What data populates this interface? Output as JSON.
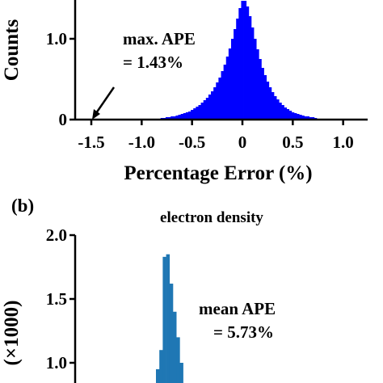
{
  "chart_data": [
    {
      "type": "bar",
      "panel_label": "",
      "title": "",
      "xlabel": "Percentage Error (%)",
      "ylabel": "Counts",
      "xlim": [
        -1.6,
        1.1
      ],
      "ylim_visible": [
        0,
        1.47
      ],
      "xticks": [
        {
          "value": -1.5,
          "label": "-1.5"
        },
        {
          "value": -1.0,
          "label": "-1.0"
        },
        {
          "value": -0.5,
          "label": "-0.5"
        },
        {
          "value": 0,
          "label": "0"
        },
        {
          "value": 0.5,
          "label": "0.5"
        },
        {
          "value": 1.0,
          "label": "1.0"
        }
      ],
      "yticks": [
        {
          "value": 0,
          "label": "0"
        },
        {
          "value": 1.0,
          "label": "1.0"
        }
      ],
      "bar_color": "#0000ff",
      "histogram": {
        "bin_width": 0.025,
        "bins": [
          {
            "x": -0.8,
            "count": 0.02
          },
          {
            "x": -0.775,
            "count": 0.02
          },
          {
            "x": -0.75,
            "count": 0.03
          },
          {
            "x": -0.725,
            "count": 0.03
          },
          {
            "x": -0.7,
            "count": 0.04
          },
          {
            "x": -0.675,
            "count": 0.04
          },
          {
            "x": -0.65,
            "count": 0.05
          },
          {
            "x": -0.625,
            "count": 0.06
          },
          {
            "x": -0.6,
            "count": 0.07
          },
          {
            "x": -0.575,
            "count": 0.08
          },
          {
            "x": -0.55,
            "count": 0.09
          },
          {
            "x": -0.525,
            "count": 0.1
          },
          {
            "x": -0.5,
            "count": 0.12
          },
          {
            "x": -0.475,
            "count": 0.14
          },
          {
            "x": -0.45,
            "count": 0.16
          },
          {
            "x": -0.425,
            "count": 0.18
          },
          {
            "x": -0.4,
            "count": 0.21
          },
          {
            "x": -0.375,
            "count": 0.24
          },
          {
            "x": -0.35,
            "count": 0.27
          },
          {
            "x": -0.325,
            "count": 0.31
          },
          {
            "x": -0.3,
            "count": 0.35
          },
          {
            "x": -0.275,
            "count": 0.4
          },
          {
            "x": -0.25,
            "count": 0.46
          },
          {
            "x": -0.225,
            "count": 0.52
          },
          {
            "x": -0.2,
            "count": 0.6
          },
          {
            "x": -0.175,
            "count": 0.68
          },
          {
            "x": -0.15,
            "count": 0.78
          },
          {
            "x": -0.125,
            "count": 0.88
          },
          {
            "x": -0.1,
            "count": 1.0
          },
          {
            "x": -0.075,
            "count": 1.12
          },
          {
            "x": -0.05,
            "count": 1.25
          },
          {
            "x": -0.025,
            "count": 1.38
          },
          {
            "x": 0.0,
            "count": 1.47
          },
          {
            "x": 0.025,
            "count": 1.47
          },
          {
            "x": 0.05,
            "count": 1.4
          },
          {
            "x": 0.075,
            "count": 1.28
          },
          {
            "x": 0.1,
            "count": 1.14
          },
          {
            "x": 0.125,
            "count": 1.0
          },
          {
            "x": 0.15,
            "count": 0.87
          },
          {
            "x": 0.175,
            "count": 0.75
          },
          {
            "x": 0.2,
            "count": 0.64
          },
          {
            "x": 0.225,
            "count": 0.55
          },
          {
            "x": 0.25,
            "count": 0.47
          },
          {
            "x": 0.275,
            "count": 0.4
          },
          {
            "x": 0.3,
            "count": 0.34
          },
          {
            "x": 0.325,
            "count": 0.29
          },
          {
            "x": 0.35,
            "count": 0.25
          },
          {
            "x": 0.375,
            "count": 0.21
          },
          {
            "x": 0.4,
            "count": 0.18
          },
          {
            "x": 0.425,
            "count": 0.15
          },
          {
            "x": 0.45,
            "count": 0.13
          },
          {
            "x": 0.475,
            "count": 0.11
          },
          {
            "x": 0.5,
            "count": 0.09
          },
          {
            "x": 0.525,
            "count": 0.08
          },
          {
            "x": 0.55,
            "count": 0.07
          },
          {
            "x": 0.575,
            "count": 0.06
          },
          {
            "x": 0.6,
            "count": 0.05
          },
          {
            "x": 0.625,
            "count": 0.04
          },
          {
            "x": 0.65,
            "count": 0.04
          },
          {
            "x": 0.675,
            "count": 0.03
          },
          {
            "x": 0.7,
            "count": 0.03
          },
          {
            "x": 0.725,
            "count": 0.02
          }
        ]
      },
      "annotations": [
        {
          "text": "max. APE"
        },
        {
          "text": "= 1.43%"
        }
      ],
      "arrow_target": {
        "x": -1.43,
        "y": 0
      }
    },
    {
      "type": "bar",
      "panel_label": "(b)",
      "title": "electron density",
      "xlabel": "",
      "ylabel": "(×1000)",
      "ylim_visible": [
        0.85,
        2.0
      ],
      "yticks": [
        {
          "value": 1.0,
          "label": "1.0"
        },
        {
          "value": 1.5,
          "label": "1.5"
        },
        {
          "value": 2.0,
          "label": "2.0"
        }
      ],
      "bar_color": "#1f77b4",
      "histogram": {
        "bins": [
          {
            "index": 0,
            "count": 0.95
          },
          {
            "index": 1,
            "count": 1.1
          },
          {
            "index": 2,
            "count": 1.83
          },
          {
            "index": 3,
            "count": 1.85
          },
          {
            "index": 4,
            "count": 1.62
          },
          {
            "index": 5,
            "count": 1.4
          },
          {
            "index": 6,
            "count": 1.2
          },
          {
            "index": 7,
            "count": 1.0
          }
        ]
      },
      "annotations": [
        {
          "text": "mean APE"
        },
        {
          "text": "= 5.73%"
        }
      ]
    }
  ]
}
